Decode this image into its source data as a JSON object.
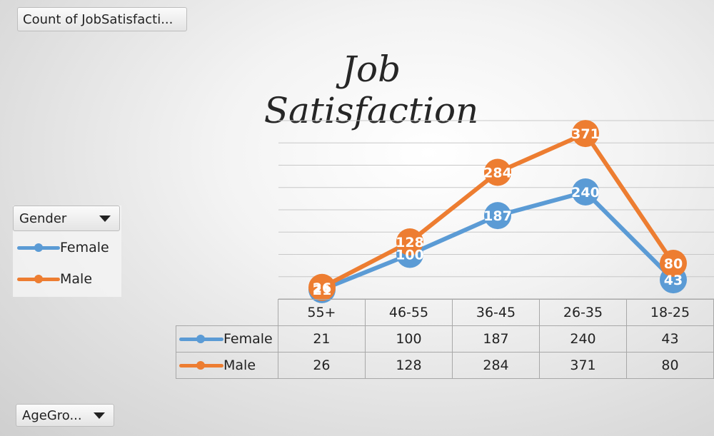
{
  "pivot": {
    "value_field_label": "Count of JobSatisfacti...",
    "legend_field_label": "Gender",
    "axis_field_label": "AgeGro..."
  },
  "colors": {
    "female": "#5b9bd5",
    "male": "#ed7d31",
    "gridline": "#c8c8c8"
  },
  "chart_data": {
    "type": "line",
    "title": "Job Satisfaction",
    "categories": [
      "55+",
      "46-55",
      "36-45",
      "26-35",
      "18-25"
    ],
    "series": [
      {
        "name": "Female",
        "values": [
          21,
          100,
          187,
          240,
          43
        ]
      },
      {
        "name": "Male",
        "values": [
          26,
          128,
          284,
          371,
          80
        ]
      }
    ],
    "ylim": [
      0,
      400
    ],
    "grid": true,
    "data_labels": true,
    "legend_placement": "left",
    "data_table": true
  }
}
